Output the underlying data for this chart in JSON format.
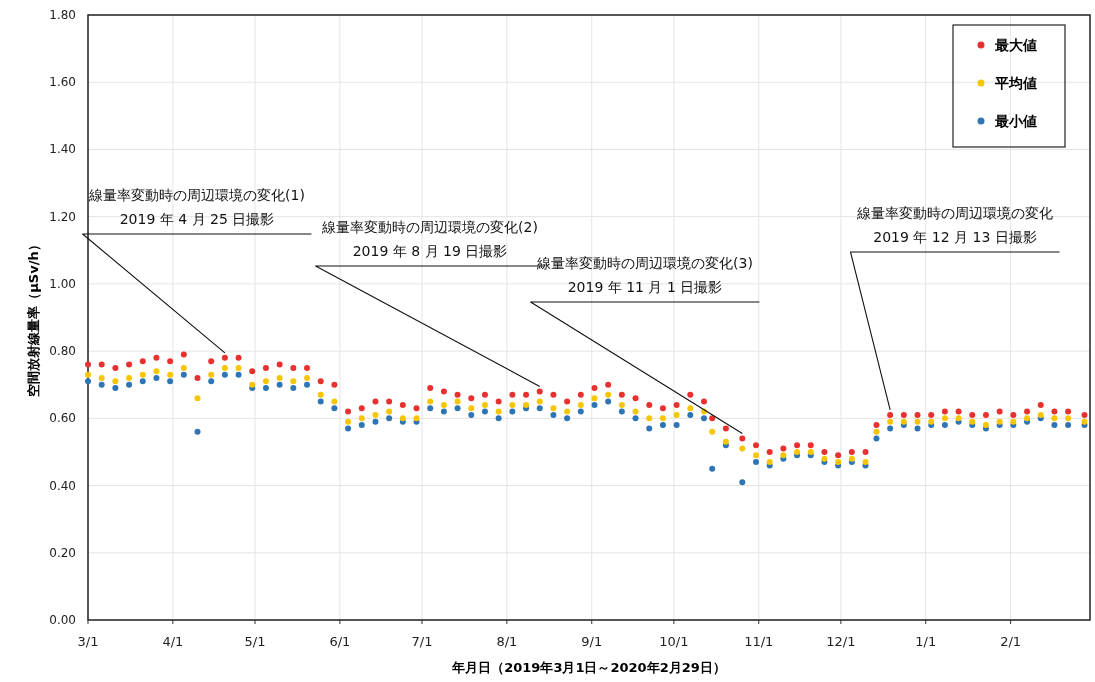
{
  "chart_data": {
    "type": "scatter",
    "xlabel": "年月日（2019年3月1日～2020年2月29日）",
    "ylabel": "空間放射線量率（μSv/h）",
    "x": [
      "2019-03-01",
      "2019-03-06",
      "2019-03-11",
      "2019-03-16",
      "2019-03-21",
      "2019-03-26",
      "2019-03-31",
      "2019-04-05",
      "2019-04-10",
      "2019-04-15",
      "2019-04-20",
      "2019-04-25",
      "2019-04-30",
      "2019-05-05",
      "2019-05-10",
      "2019-05-15",
      "2019-05-20",
      "2019-05-25",
      "2019-05-30",
      "2019-06-04",
      "2019-06-09",
      "2019-06-14",
      "2019-06-19",
      "2019-06-24",
      "2019-06-29",
      "2019-07-04",
      "2019-07-09",
      "2019-07-14",
      "2019-07-19",
      "2019-07-24",
      "2019-07-29",
      "2019-08-03",
      "2019-08-08",
      "2019-08-13",
      "2019-08-18",
      "2019-08-23",
      "2019-08-28",
      "2019-09-02",
      "2019-09-07",
      "2019-09-12",
      "2019-09-17",
      "2019-09-22",
      "2019-09-27",
      "2019-10-02",
      "2019-10-07",
      "2019-10-12",
      "2019-10-15",
      "2019-10-20",
      "2019-10-26",
      "2019-10-31",
      "2019-11-05",
      "2019-11-10",
      "2019-11-15",
      "2019-11-20",
      "2019-11-25",
      "2019-11-30",
      "2019-12-05",
      "2019-12-10",
      "2019-12-14",
      "2019-12-19",
      "2019-12-24",
      "2019-12-29",
      "2020-01-03",
      "2020-01-08",
      "2020-01-13",
      "2020-01-18",
      "2020-01-23",
      "2020-01-28",
      "2020-02-02",
      "2020-02-07",
      "2020-02-12",
      "2020-02-17",
      "2020-02-22",
      "2020-02-28"
    ],
    "series": [
      {
        "name": "最大値",
        "color": "#e8312f",
        "values": [
          0.76,
          0.76,
          0.75,
          0.76,
          0.77,
          0.78,
          0.77,
          0.79,
          0.72,
          0.77,
          0.78,
          0.78,
          0.74,
          0.75,
          0.76,
          0.75,
          0.75,
          0.71,
          0.7,
          0.62,
          0.63,
          0.65,
          0.65,
          0.64,
          0.63,
          0.69,
          0.68,
          0.67,
          0.66,
          0.67,
          0.65,
          0.67,
          0.67,
          0.68,
          0.67,
          0.65,
          0.67,
          0.69,
          0.7,
          0.67,
          0.66,
          0.64,
          0.63,
          0.64,
          0.67,
          0.65,
          0.6,
          0.57,
          0.54,
          0.52,
          0.5,
          0.51,
          0.52,
          0.52,
          0.5,
          0.49,
          0.5,
          0.5,
          0.58,
          0.61,
          0.61,
          0.61,
          0.61,
          0.62,
          0.62,
          0.61,
          0.61,
          0.62,
          0.61,
          0.62,
          0.64,
          0.62,
          0.62,
          0.61
        ]
      },
      {
        "name": "平均値",
        "color": "#f7c600",
        "values": [
          0.73,
          0.72,
          0.71,
          0.72,
          0.73,
          0.74,
          0.73,
          0.75,
          0.66,
          0.73,
          0.75,
          0.75,
          0.7,
          0.71,
          0.72,
          0.71,
          0.72,
          0.67,
          0.65,
          0.59,
          0.6,
          0.61,
          0.62,
          0.6,
          0.6,
          0.65,
          0.64,
          0.65,
          0.63,
          0.64,
          0.62,
          0.64,
          0.64,
          0.65,
          0.63,
          0.62,
          0.64,
          0.66,
          0.67,
          0.64,
          0.62,
          0.6,
          0.6,
          0.61,
          0.63,
          0.62,
          0.56,
          0.53,
          0.51,
          0.49,
          0.47,
          0.49,
          0.5,
          0.5,
          0.48,
          0.47,
          0.48,
          0.47,
          0.56,
          0.59,
          0.59,
          0.59,
          0.59,
          0.6,
          0.6,
          0.59,
          0.58,
          0.59,
          0.59,
          0.6,
          0.61,
          0.6,
          0.6,
          0.59
        ]
      },
      {
        "name": "最小値",
        "color": "#2e75b6",
        "values": [
          0.71,
          0.7,
          0.69,
          0.7,
          0.71,
          0.72,
          0.71,
          0.73,
          0.56,
          0.71,
          0.73,
          0.73,
          0.69,
          0.69,
          0.7,
          0.69,
          0.7,
          0.65,
          0.63,
          0.57,
          0.58,
          0.59,
          0.6,
          0.59,
          0.59,
          0.63,
          0.62,
          0.63,
          0.61,
          0.62,
          0.6,
          0.62,
          0.63,
          0.63,
          0.61,
          0.6,
          0.62,
          0.64,
          0.65,
          0.62,
          0.6,
          0.57,
          0.58,
          0.58,
          0.61,
          0.6,
          0.45,
          0.52,
          0.41,
          0.47,
          0.46,
          0.48,
          0.49,
          0.49,
          0.47,
          0.46,
          0.47,
          0.46,
          0.54,
          0.57,
          0.58,
          0.57,
          0.58,
          0.58,
          0.59,
          0.58,
          0.57,
          0.58,
          0.58,
          0.59,
          0.6,
          0.58,
          0.58,
          0.58
        ]
      }
    ],
    "xlim": [
      "2019-03-01",
      "2020-03-01"
    ],
    "xticks": [
      {
        "value": "2019-03-01",
        "label": "3/1"
      },
      {
        "value": "2019-04-01",
        "label": "4/1"
      },
      {
        "value": "2019-05-01",
        "label": "5/1"
      },
      {
        "value": "2019-06-01",
        "label": "6/1"
      },
      {
        "value": "2019-07-01",
        "label": "7/1"
      },
      {
        "value": "2019-08-01",
        "label": "8/1"
      },
      {
        "value": "2019-09-01",
        "label": "9/1"
      },
      {
        "value": "2019-10-01",
        "label": "10/1"
      },
      {
        "value": "2019-11-01",
        "label": "11/1"
      },
      {
        "value": "2019-12-01",
        "label": "12/1"
      },
      {
        "value": "2020-01-01",
        "label": "1/1"
      },
      {
        "value": "2020-02-01",
        "label": "2/1"
      }
    ],
    "ylim": [
      0,
      1.8
    ],
    "yticks": [
      {
        "value": 0,
        "label": "0.00"
      },
      {
        "value": 0.2,
        "label": "0.20"
      },
      {
        "value": 0.4,
        "label": "0.40"
      },
      {
        "value": 0.6,
        "label": "0.60"
      },
      {
        "value": 0.8,
        "label": "0.80"
      },
      {
        "value": 1.0,
        "label": "1.00"
      },
      {
        "value": 1.2,
        "label": "1.20"
      },
      {
        "value": 1.4,
        "label": "1.40"
      },
      {
        "value": 1.6,
        "label": "1.60"
      },
      {
        "value": 1.8,
        "label": "1.80"
      }
    ],
    "annotations": [
      {
        "text": "線量率変動時の周辺環境の変化(1)\n2019 年 4 月 25 日撮影",
        "x": "2019-04-20",
        "y": 0.78
      },
      {
        "text": "線量率変動時の周辺環境の変化(2)\n2019 年 8 月 19 日撮影",
        "x": "2019-08-13",
        "y": 0.68
      },
      {
        "text": "線量率変動時の周辺環境の変化(3)\n2019 年 11 月 1 日撮影",
        "x": "2019-10-26",
        "y": 0.54
      },
      {
        "text": "線量率変動時の周辺環境の変化\n2019 年 12 月 13 日撮影",
        "x": "2019-12-19",
        "y": 0.61
      }
    ],
    "grid": true,
    "legend": "top right",
    "marker": "circle"
  }
}
